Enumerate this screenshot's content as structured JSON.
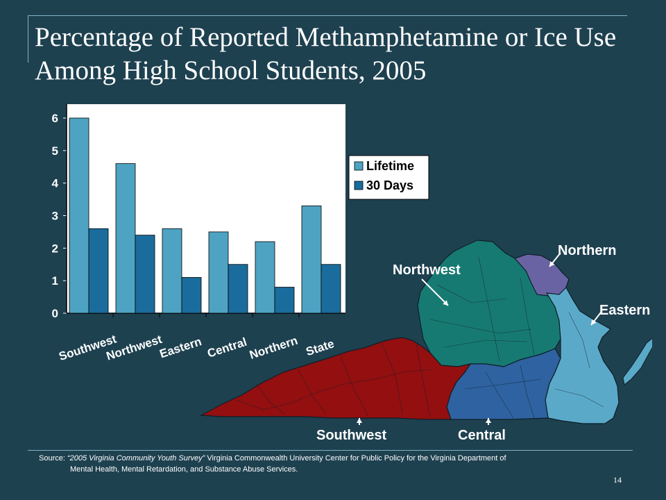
{
  "title": "Percentage of Reported Methamphetamine or Ice Use Among High School Students, 2005",
  "chart_data": {
    "type": "bar",
    "categories": [
      "Southwest",
      "Northwest",
      "Eastern",
      "Central",
      "Northern",
      "State"
    ],
    "series": [
      {
        "name": "Lifetime",
        "values": [
          6,
          4.6,
          2.6,
          2.5,
          2.2,
          3.3
        ],
        "color": "#4ea3c2"
      },
      {
        "name": "30 Days",
        "values": [
          2.6,
          2.4,
          1.1,
          1.5,
          0.8,
          1.5
        ],
        "color": "#1a6c9c"
      }
    ],
    "ylim": [
      0,
      6
    ],
    "yticks": [
      0,
      1,
      2,
      3,
      4,
      5,
      6
    ],
    "data_labels": [
      "6",
      "2.6",
      "4.6",
      "2.4",
      "2.6",
      "1.1",
      "2.5",
      "1.5",
      "2.2",
      "0.8",
      "3.3",
      "1.5"
    ],
    "legend_position": "top-right",
    "plot_background": "#ffffff"
  },
  "map": {
    "labels": {
      "northern": "Northern",
      "northwest": "Northwest",
      "eastern": "Eastern",
      "southwest": "Southwest",
      "central": "Central"
    },
    "region_colors": {
      "northern": "#6a63a3",
      "northwest": "#177a72",
      "eastern": "#5ba9c8",
      "southwest": "#930f10",
      "central": "#2f62a0"
    }
  },
  "source": {
    "prefix": "Source:",
    "survey": "“2005 Virginia Community Youth Survey”",
    "line1_rest": "Virginia Commonwealth University Center for Public Policy for the Virginia Department of",
    "line2": "Mental Health, Mental Retardation, and Substance Abuse Services."
  },
  "page_number": "14"
}
